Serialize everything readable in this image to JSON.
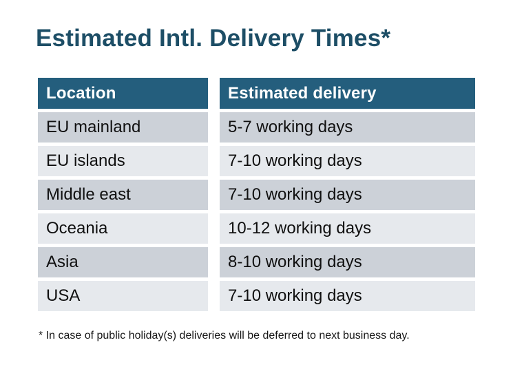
{
  "title": "Estimated Intl. Delivery Times*",
  "table": {
    "headers": [
      "Location",
      "Estimated delivery"
    ],
    "rows": [
      {
        "location": "EU mainland",
        "delivery": "5-7 working days"
      },
      {
        "location": "EU islands",
        "delivery": "7-10 working days"
      },
      {
        "location": "Middle east",
        "delivery": "7-10 working days"
      },
      {
        "location": "Oceania",
        "delivery": "10-12 working days"
      },
      {
        "location": "Asia",
        "delivery": "8-10 working days"
      },
      {
        "location": "USA",
        "delivery": "7-10 working days"
      }
    ]
  },
  "footnote": "* In case of public holiday(s) deliveries will be deferred to next business day.",
  "colors": {
    "title_text": "#1d4e66",
    "header_bg": "#245e7d",
    "header_text": "#ffffff",
    "row_dark_bg": "#ccd1d8",
    "row_light_bg": "#e6e9ed",
    "cell_text": "#101010",
    "page_bg": "#ffffff"
  }
}
